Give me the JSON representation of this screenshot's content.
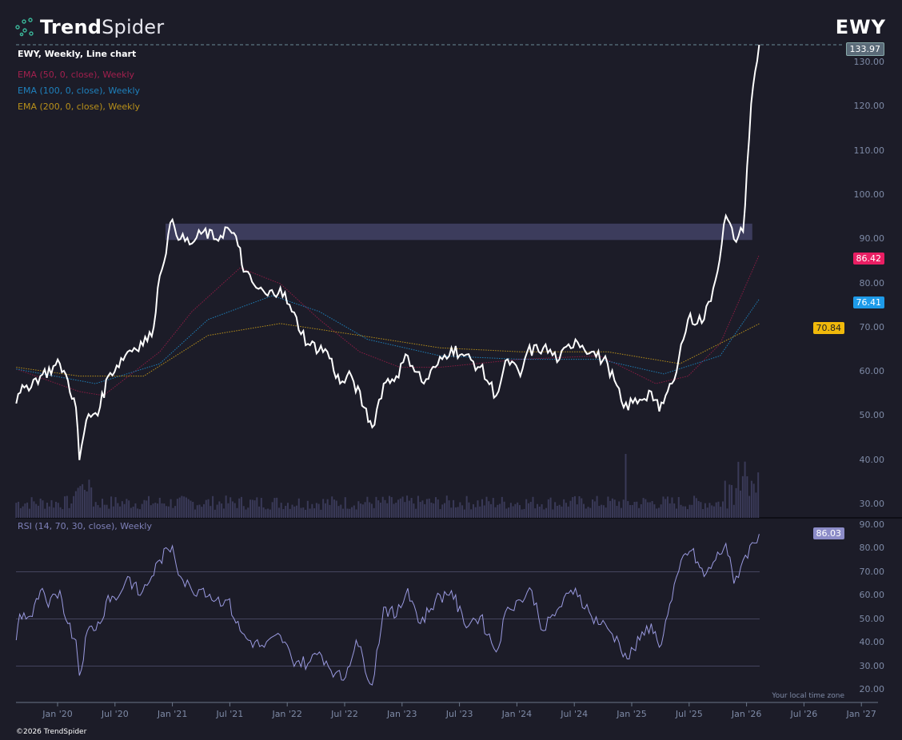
{
  "brand": {
    "name_bold": "Trend",
    "name_light": "Spider",
    "copyright": "©2026 TrendSpider"
  },
  "ticker": "EWY",
  "legend": {
    "main": "EWY, Weekly, Line chart",
    "ema50": "EMA (50, 0, close), Weekly",
    "ema100": "EMA (100, 0, close), Weekly",
    "ema200": "EMA (200, 0, close), Weekly",
    "rsi": "RSI (14, 70, 30, close), Weekly"
  },
  "colors": {
    "bg": "#1c1c28",
    "price": "#ffffff",
    "ema50": "#8c1c44",
    "ema100": "#1e7fb8",
    "ema200": "#b8901a",
    "rsi": "#9a9ae0",
    "zone": "#3c3c5c",
    "badge_last": "#5a6a78",
    "badge_ema50": "#e91e63",
    "badge_ema100": "#1e9be9",
    "badge_ema200": "#f0b90b",
    "badge_rsi": "#8c8cc8"
  },
  "badges": {
    "last": "133.97",
    "ema50": "86.42",
    "ema100": "76.41",
    "ema200": "70.84",
    "rsi": "86.03"
  },
  "timezone_note": "Your local time zone",
  "chart_data": [
    {
      "type": "line",
      "title": "EWY, Weekly, Line chart",
      "ylim": [
        26,
        136
      ],
      "xlim": [
        2019.62,
        2027.12
      ],
      "y_ticks": [
        "130.00",
        "120.00",
        "110.00",
        "100.00",
        "90.00",
        "80.00",
        "70.00",
        "60.00",
        "50.00",
        "40.00",
        "30.00"
      ],
      "x_ticks": [
        {
          "t": 2020.0,
          "label": "Jan '20"
        },
        {
          "t": 2020.5,
          "label": "Jul '20"
        },
        {
          "t": 2021.0,
          "label": "Jan '21"
        },
        {
          "t": 2021.5,
          "label": "Jul '21"
        },
        {
          "t": 2022.0,
          "label": "Jan '22"
        },
        {
          "t": 2022.5,
          "label": "Jul '22"
        },
        {
          "t": 2023.0,
          "label": "Jan '23"
        },
        {
          "t": 2023.5,
          "label": "Jul '23"
        },
        {
          "t": 2024.0,
          "label": "Jan '24"
        },
        {
          "t": 2024.5,
          "label": "Jul '24"
        },
        {
          "t": 2025.0,
          "label": "Jan '25"
        },
        {
          "t": 2025.5,
          "label": "Jul '25"
        },
        {
          "t": 2026.0,
          "label": "Jan '26"
        },
        {
          "t": 2026.5,
          "label": "Jul '26"
        },
        {
          "t": 2027.0,
          "label": "Jan '27"
        }
      ],
      "resistance_zone": {
        "from": 2020.94,
        "to": 2026.05,
        "low": 89.8,
        "high": 93.5
      },
      "series": [
        {
          "name": "EWY",
          "points": [
            [
              2019.64,
              52.8
            ],
            [
              2019.71,
              56.4
            ],
            [
              2019.85,
              59
            ],
            [
              2020.02,
              61.8
            ],
            [
              2020.09,
              58
            ],
            [
              2020.16,
              51.9
            ],
            [
              2020.19,
              40
            ],
            [
              2020.25,
              49
            ],
            [
              2020.37,
              52
            ],
            [
              2020.44,
              59
            ],
            [
              2020.61,
              64.5
            ],
            [
              2020.82,
              68
            ],
            [
              2020.89,
              81.7
            ],
            [
              2021.0,
              94.4
            ],
            [
              2021.07,
              90
            ],
            [
              2021.17,
              89
            ],
            [
              2021.27,
              91.7
            ],
            [
              2021.38,
              90
            ],
            [
              2021.48,
              92.6
            ],
            [
              2021.59,
              88
            ],
            [
              2021.62,
              82.6
            ],
            [
              2021.73,
              79
            ],
            [
              2021.83,
              77.2
            ],
            [
              2021.94,
              79
            ],
            [
              2022.04,
              73.6
            ],
            [
              2022.18,
              66.3
            ],
            [
              2022.35,
              64.5
            ],
            [
              2022.46,
              57.3
            ],
            [
              2022.56,
              59
            ],
            [
              2022.67,
              51.9
            ],
            [
              2022.74,
              47.4
            ],
            [
              2022.84,
              57.3
            ],
            [
              2022.95,
              59
            ],
            [
              2023.05,
              63.6
            ],
            [
              2023.19,
              57.3
            ],
            [
              2023.29,
              61
            ],
            [
              2023.43,
              65.4
            ],
            [
              2023.54,
              63.6
            ],
            [
              2023.68,
              61
            ],
            [
              2023.82,
              54.6
            ],
            [
              2023.92,
              62.8
            ],
            [
              2024.03,
              59
            ],
            [
              2024.09,
              64.5
            ],
            [
              2024.23,
              65.4
            ],
            [
              2024.37,
              62.8
            ],
            [
              2024.51,
              67.3
            ],
            [
              2024.65,
              64.5
            ],
            [
              2024.79,
              61.8
            ],
            [
              2024.93,
              51.9
            ],
            [
              2025.07,
              53.7
            ],
            [
              2025.17,
              55.5
            ],
            [
              2025.24,
              51
            ],
            [
              2025.35,
              57.3
            ],
            [
              2025.49,
              71.8
            ],
            [
              2025.63,
              71.8
            ],
            [
              2025.73,
              80.8
            ],
            [
              2025.82,
              95.3
            ],
            [
              2025.89,
              90
            ],
            [
              2025.97,
              91.7
            ],
            [
              2026.04,
              120.6
            ],
            [
              2026.11,
              133.97
            ]
          ]
        },
        {
          "name": "EMA 50",
          "points": [
            [
              2019.64,
              60.6
            ],
            [
              2020.19,
              55.5
            ],
            [
              2020.4,
              54.6
            ],
            [
              2020.89,
              64.5
            ],
            [
              2021.17,
              73.6
            ],
            [
              2021.59,
              83.5
            ],
            [
              2021.94,
              79.9
            ],
            [
              2022.28,
              71.8
            ],
            [
              2022.63,
              64.5
            ],
            [
              2022.98,
              61
            ],
            [
              2023.33,
              61
            ],
            [
              2024.03,
              62.8
            ],
            [
              2024.72,
              63.6
            ],
            [
              2025.21,
              57.3
            ],
            [
              2025.49,
              59
            ],
            [
              2025.77,
              66.3
            ],
            [
              2026.11,
              86.42
            ]
          ]
        },
        {
          "name": "EMA 100",
          "points": [
            [
              2019.64,
              60.6
            ],
            [
              2020.33,
              57.3
            ],
            [
              2020.89,
              61.8
            ],
            [
              2021.31,
              71.8
            ],
            [
              2021.87,
              77.2
            ],
            [
              2022.28,
              73.6
            ],
            [
              2022.7,
              67.3
            ],
            [
              2023.33,
              63.6
            ],
            [
              2024.03,
              62.8
            ],
            [
              2024.72,
              62.8
            ],
            [
              2025.28,
              59.5
            ],
            [
              2025.77,
              63.6
            ],
            [
              2026.11,
              76.41
            ]
          ]
        },
        {
          "name": "EMA 200",
          "points": [
            [
              2019.64,
              61
            ],
            [
              2020.19,
              59
            ],
            [
              2020.75,
              59
            ],
            [
              2021.31,
              68.2
            ],
            [
              2021.94,
              70.9
            ],
            [
              2022.63,
              68.2
            ],
            [
              2023.33,
              65.4
            ],
            [
              2024.03,
              64.5
            ],
            [
              2024.79,
              64.5
            ],
            [
              2025.42,
              61.8
            ],
            [
              2026.11,
              70.84
            ]
          ]
        }
      ]
    },
    {
      "type": "line",
      "title": "RSI (14, 70, 30, close), Weekly",
      "ylim": [
        17,
        90
      ],
      "y_ticks": [
        "90.00",
        "80.00",
        "70.00",
        "60.00",
        "50.00",
        "40.00",
        "30.00",
        "20.00"
      ],
      "levels": [
        70,
        50,
        30
      ],
      "series": [
        {
          "name": "RSI",
          "points": [
            [
              2019.64,
              41
            ],
            [
              2019.67,
              52
            ],
            [
              2019.78,
              51
            ],
            [
              2019.85,
              62
            ],
            [
              2019.92,
              55
            ],
            [
              2020.02,
              62
            ],
            [
              2020.09,
              48
            ],
            [
              2020.16,
              41
            ],
            [
              2020.19,
              26
            ],
            [
              2020.26,
              45
            ],
            [
              2020.37,
              48
            ],
            [
              2020.44,
              60
            ],
            [
              2020.51,
              58
            ],
            [
              2020.61,
              68
            ],
            [
              2020.72,
              60
            ],
            [
              2020.82,
              68
            ],
            [
              2020.89,
              75
            ],
            [
              2021.0,
              81
            ],
            [
              2021.07,
              68
            ],
            [
              2021.17,
              62
            ],
            [
              2021.27,
              63
            ],
            [
              2021.38,
              58
            ],
            [
              2021.48,
              58
            ],
            [
              2021.59,
              45
            ],
            [
              2021.66,
              41
            ],
            [
              2021.8,
              38
            ],
            [
              2021.94,
              43
            ],
            [
              2022.04,
              33
            ],
            [
              2022.18,
              31
            ],
            [
              2022.28,
              36
            ],
            [
              2022.42,
              27
            ],
            [
              2022.49,
              24
            ],
            [
              2022.6,
              41
            ],
            [
              2022.74,
              22
            ],
            [
              2022.84,
              55
            ],
            [
              2022.95,
              51
            ],
            [
              2023.05,
              63
            ],
            [
              2023.16,
              48
            ],
            [
              2023.29,
              58
            ],
            [
              2023.43,
              62
            ],
            [
              2023.54,
              48
            ],
            [
              2023.68,
              51
            ],
            [
              2023.82,
              36
            ],
            [
              2023.92,
              55
            ],
            [
              2024.03,
              58
            ],
            [
              2024.13,
              62
            ],
            [
              2024.23,
              45
            ],
            [
              2024.37,
              55
            ],
            [
              2024.51,
              63
            ],
            [
              2024.65,
              51
            ],
            [
              2024.79,
              46
            ],
            [
              2024.89,
              40
            ],
            [
              2024.96,
              33
            ],
            [
              2025.07,
              41
            ],
            [
              2025.17,
              48
            ],
            [
              2025.24,
              38
            ],
            [
              2025.35,
              58
            ],
            [
              2025.45,
              77
            ],
            [
              2025.52,
              79
            ],
            [
              2025.63,
              68
            ],
            [
              2025.73,
              75
            ],
            [
              2025.82,
              82
            ],
            [
              2025.89,
              65
            ],
            [
              2025.97,
              75
            ],
            [
              2026.11,
              86.03
            ]
          ]
        }
      ]
    }
  ]
}
